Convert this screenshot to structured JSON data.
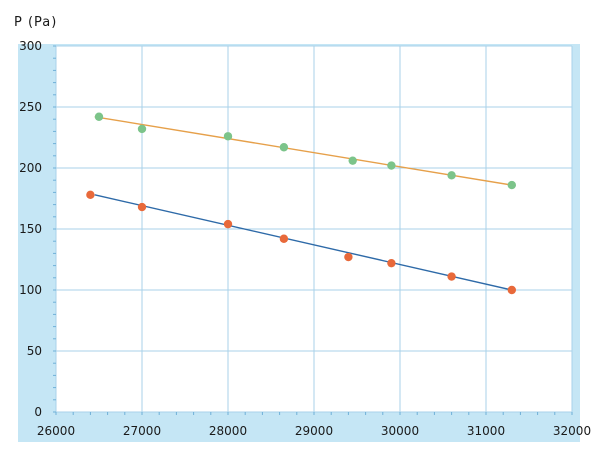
{
  "chart_data": {
    "type": "scatter",
    "title": "",
    "xlabel": "",
    "ylabel": "P (Pa)",
    "xlim": [
      26000,
      32000
    ],
    "ylim": [
      0,
      300
    ],
    "x_ticks": [
      "26000",
      "27000",
      "28000",
      "29000",
      "30000",
      "31000",
      "32000"
    ],
    "y_ticks": [
      "0",
      "50",
      "100",
      "150",
      "200",
      "250",
      "300"
    ],
    "grid": true,
    "series": [
      {
        "color": "#7cc48a",
        "line_color": "#e6a04a",
        "points": [
          {
            "x": 26500,
            "y": 242
          },
          {
            "x": 27000,
            "y": 232
          },
          {
            "x": 28000,
            "y": 226
          },
          {
            "x": 28650,
            "y": 217
          },
          {
            "x": 29450,
            "y": 206
          },
          {
            "x": 29900,
            "y": 202
          },
          {
            "x": 30600,
            "y": 194
          },
          {
            "x": 31300,
            "y": 186
          }
        ],
        "fit": {
          "x": [
            26450,
            31300
          ],
          "y": [
            242,
            186
          ]
        }
      },
      {
        "color": "#e8693a",
        "line_color": "#2e6aa8",
        "points": [
          {
            "x": 26400,
            "y": 178
          },
          {
            "x": 27000,
            "y": 168
          },
          {
            "x": 28000,
            "y": 154
          },
          {
            "x": 28650,
            "y": 142
          },
          {
            "x": 29400,
            "y": 127
          },
          {
            "x": 29900,
            "y": 122
          },
          {
            "x": 30600,
            "y": 111
          },
          {
            "x": 31300,
            "y": 100
          }
        ],
        "fit": {
          "x": [
            26450,
            31300
          ],
          "y": [
            178,
            100
          ]
        }
      }
    ],
    "colors": {
      "axis_band": "#c5e6f5",
      "grid": "#a9d2ea",
      "minor_tick": "#6fb0d8",
      "plot_bg": "#ffffff"
    }
  }
}
